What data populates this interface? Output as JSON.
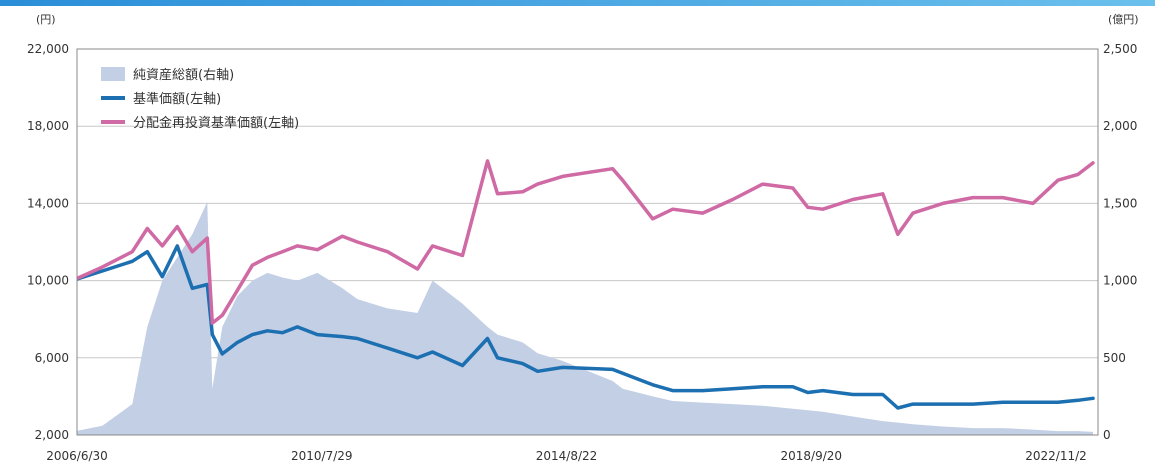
{
  "chart_data": {
    "type": "line",
    "title": "",
    "left_unit": "(円)",
    "right_unit": "(億円)",
    "x_tick_labels": [
      "2006/6/30",
      "2010/7/29",
      "2014/8/22",
      "2018/9/20",
      "2022/11/2"
    ],
    "left_axis": {
      "range": [
        2000,
        22000
      ],
      "ticks": [
        "2,000",
        "6,000",
        "10,000",
        "14,000",
        "18,000",
        "22,000"
      ]
    },
    "right_axis": {
      "range": [
        0,
        2500
      ],
      "ticks": [
        "0",
        "500",
        "1,000",
        "1,500",
        "2,000",
        "2,500"
      ]
    },
    "grid": true,
    "legend_position": "top-left",
    "x": [
      "2006-06",
      "2006-12",
      "2007-06",
      "2007-09",
      "2007-12",
      "2008-03",
      "2008-06",
      "2008-09",
      "2008-10",
      "2008-12",
      "2009-03",
      "2009-06",
      "2009-09",
      "2009-12",
      "2010-03",
      "2010-07",
      "2010-12",
      "2011-03",
      "2011-09",
      "2012-03",
      "2012-06",
      "2012-12",
      "2013-05",
      "2013-07",
      "2013-12",
      "2014-03",
      "2014-08",
      "2015-06",
      "2015-08",
      "2016-02",
      "2016-06",
      "2016-12",
      "2017-06",
      "2017-12",
      "2018-06",
      "2018-09",
      "2018-12",
      "2019-06",
      "2019-12",
      "2020-03",
      "2020-06",
      "2020-12",
      "2021-06",
      "2021-12",
      "2022-06",
      "2022-11",
      "2023-03",
      "2023-06"
    ],
    "series": [
      {
        "name": "純資産総額(右軸)",
        "axis": "right",
        "style": "area",
        "color": "#c3cfe5",
        "values": [
          20,
          60,
          200,
          700,
          1000,
          1150,
          1300,
          1510,
          300,
          700,
          900,
          1000,
          1050,
          1020,
          1000,
          1050,
          950,
          880,
          820,
          790,
          1000,
          850,
          700,
          650,
          600,
          530,
          480,
          350,
          300,
          250,
          220,
          210,
          200,
          190,
          170,
          160,
          150,
          120,
          90,
          80,
          70,
          55,
          45,
          45,
          35,
          25,
          25,
          20
        ]
      },
      {
        "name": "基準価額(左軸)",
        "axis": "left",
        "style": "line",
        "color": "#1c6fb0",
        "values": [
          10000,
          10500,
          11000,
          11500,
          10200,
          11800,
          9600,
          9800,
          7200,
          6200,
          6800,
          7200,
          7400,
          7300,
          7600,
          7200,
          7100,
          7000,
          6500,
          6000,
          6300,
          5600,
          7000,
          6000,
          5700,
          5300,
          5500,
          5400,
          5200,
          4600,
          4300,
          4300,
          4400,
          4500,
          4500,
          4200,
          4300,
          4100,
          4100,
          3400,
          3600,
          3600,
          3600,
          3700,
          3700,
          3700,
          3800,
          3900
        ]
      },
      {
        "name": "分配金再投資基準価額(左軸)",
        "axis": "left",
        "style": "line",
        "color": "#cf6aa4",
        "values": [
          10000,
          10700,
          11500,
          12700,
          11800,
          12800,
          11500,
          12200,
          7800,
          8200,
          9500,
          10800,
          11200,
          11500,
          11800,
          11600,
          12300,
          12000,
          11500,
          10600,
          11800,
          11300,
          16200,
          14500,
          14600,
          15000,
          15400,
          15800,
          15200,
          13200,
          13700,
          13500,
          14200,
          15000,
          14800,
          13800,
          13700,
          14200,
          14500,
          12400,
          13500,
          14000,
          14300,
          14300,
          14000,
          15200,
          15500,
          16100
        ]
      }
    ]
  }
}
